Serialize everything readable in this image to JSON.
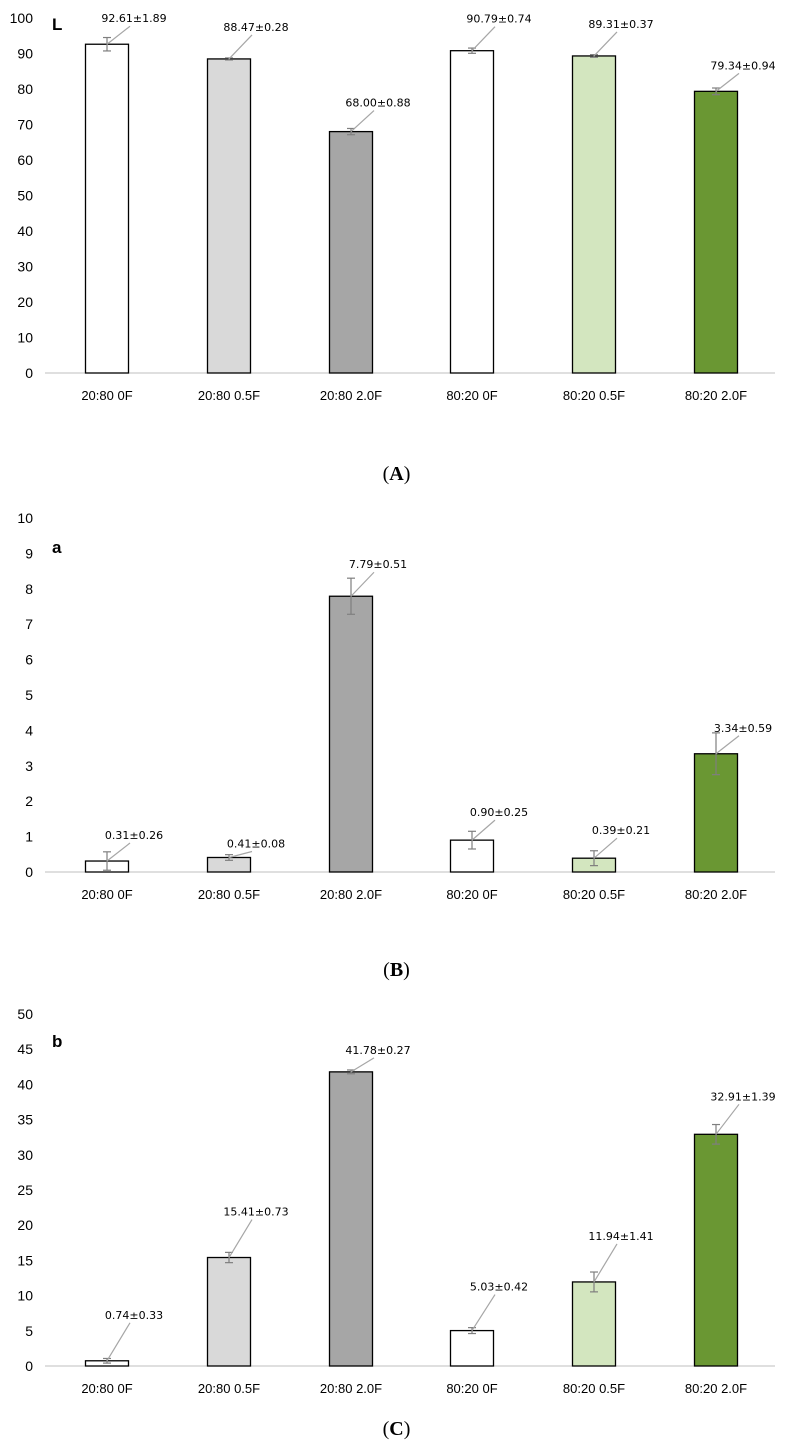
{
  "chart_data": [
    {
      "type": "bar",
      "panel_label": "L",
      "caption": "A",
      "categories": [
        "20:80  0F",
        "20:80  0.5F",
        "20:80  2.0F",
        "80:20  0F",
        "80:20  0.5F",
        "80:20 2.0F"
      ],
      "values": [
        92.61,
        88.47,
        68.0,
        90.79,
        89.31,
        79.34
      ],
      "errors": [
        1.89,
        0.28,
        0.88,
        0.74,
        0.37,
        0.94
      ],
      "data_labels": [
        "92.61±1.89",
        "88.47±0.28",
        "68.00±0.88",
        "90.79±0.74",
        "89.31±0.37",
        "79.34±0.94"
      ],
      "ylim": [
        0,
        100
      ],
      "yticks": [
        0,
        10,
        20,
        30,
        40,
        50,
        60,
        70,
        80,
        90,
        100
      ],
      "bar_colors": [
        "#ffffff",
        "#d9d9d9",
        "#a6a6a6",
        "#ffffff",
        "#d3e6bf",
        "#6a9733"
      ],
      "grid": false,
      "legend": "none"
    },
    {
      "type": "bar",
      "panel_label": "a",
      "caption": "B",
      "categories": [
        "20:80  0F",
        "20:80  0.5F",
        "20:80  2.0F",
        "80:20  0F",
        "80:20  0.5F",
        "80:20 2.0F"
      ],
      "values": [
        0.31,
        0.41,
        7.79,
        0.9,
        0.39,
        3.34
      ],
      "errors": [
        0.26,
        0.08,
        0.51,
        0.25,
        0.21,
        0.59
      ],
      "data_labels": [
        "0.31±0.26",
        "0.41±0.08",
        "7.79±0.51",
        "0.90±0.25",
        "0.39±0.21",
        "3.34±0.59"
      ],
      "ylim": [
        0,
        10
      ],
      "yticks": [
        0,
        1,
        2,
        3,
        4,
        5,
        6,
        7,
        8,
        9,
        10
      ],
      "bar_colors": [
        "#ffffff",
        "#d9d9d9",
        "#a6a6a6",
        "#ffffff",
        "#d3e6bf",
        "#6a9733"
      ],
      "grid": false,
      "legend": "none"
    },
    {
      "type": "bar",
      "panel_label": "b",
      "caption": "C",
      "categories": [
        "20:80  0F",
        "20:80  0.5F",
        "20:80  2.0F",
        "80:20  0F",
        "80:20  0.5F",
        "80:20 2.0F"
      ],
      "values": [
        0.74,
        15.41,
        41.78,
        5.03,
        11.94,
        32.91
      ],
      "errors": [
        0.33,
        0.73,
        0.27,
        0.42,
        1.41,
        1.39
      ],
      "data_labels": [
        "0.74±0.33",
        "15.41±0.73",
        "41.78±0.27",
        "5.03±0.42",
        "11.94±1.41",
        "32.91±1.39"
      ],
      "ylim": [
        0,
        50
      ],
      "yticks": [
        0,
        5,
        10,
        15,
        20,
        25,
        30,
        35,
        40,
        45,
        50
      ],
      "bar_colors": [
        "#ffffff",
        "#d9d9d9",
        "#a6a6a6",
        "#ffffff",
        "#d3e6bf",
        "#6a9733"
      ],
      "grid": false,
      "legend": "none"
    }
  ]
}
